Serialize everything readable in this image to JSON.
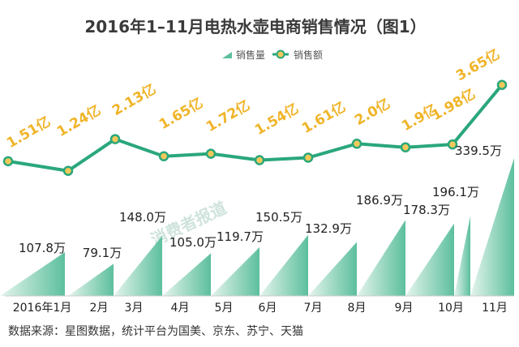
{
  "title": "2016年1–11月电热水壶电商销售情况（图1）",
  "source": "数据来源：星图数据，统计平台为国美、京东、苏宁、天猫",
  "watermark": "消费者报道",
  "colors": {
    "volume": "#5cbf9d",
    "volume_light": "#e6f5ee",
    "sales_line": "#2aa77b",
    "sales_marker_fill": "#f3c95a",
    "sales_label": "#f0b429",
    "title": "#3a3a3a"
  },
  "chart_data": {
    "type": "bar+line",
    "categories": [
      "2016年1月",
      "2月",
      "3月",
      "4月",
      "5月",
      "6月",
      "7月",
      "8月",
      "9月",
      "10月",
      "11月"
    ],
    "series": [
      {
        "name": "销售量",
        "type": "bar",
        "values": [
          107.8,
          79.1,
          148.0,
          105.0,
          119.7,
          150.5,
          132.9,
          186.9,
          178.3,
          196.1,
          339.5
        ],
        "labels": [
          "107.8万",
          "79.1万",
          "148.0万",
          "105.0万",
          "119.7万",
          "150.5万",
          "132.9万",
          "186.9万",
          "178.3万",
          "196.1万",
          "339.5万"
        ]
      },
      {
        "name": "销售额",
        "type": "line",
        "values": [
          1.51,
          1.24,
          2.13,
          1.65,
          1.72,
          1.54,
          1.61,
          2.0,
          1.9,
          1.98,
          3.65
        ],
        "labels": [
          "1.51亿",
          "1.24亿",
          "2.13亿",
          "1.65亿",
          "1.72亿",
          "1.54亿",
          "1.61亿",
          "2.0亿",
          "1.9亿",
          "1.98亿",
          "3.65亿"
        ]
      }
    ],
    "legend_position": "top-center",
    "grid": false
  }
}
